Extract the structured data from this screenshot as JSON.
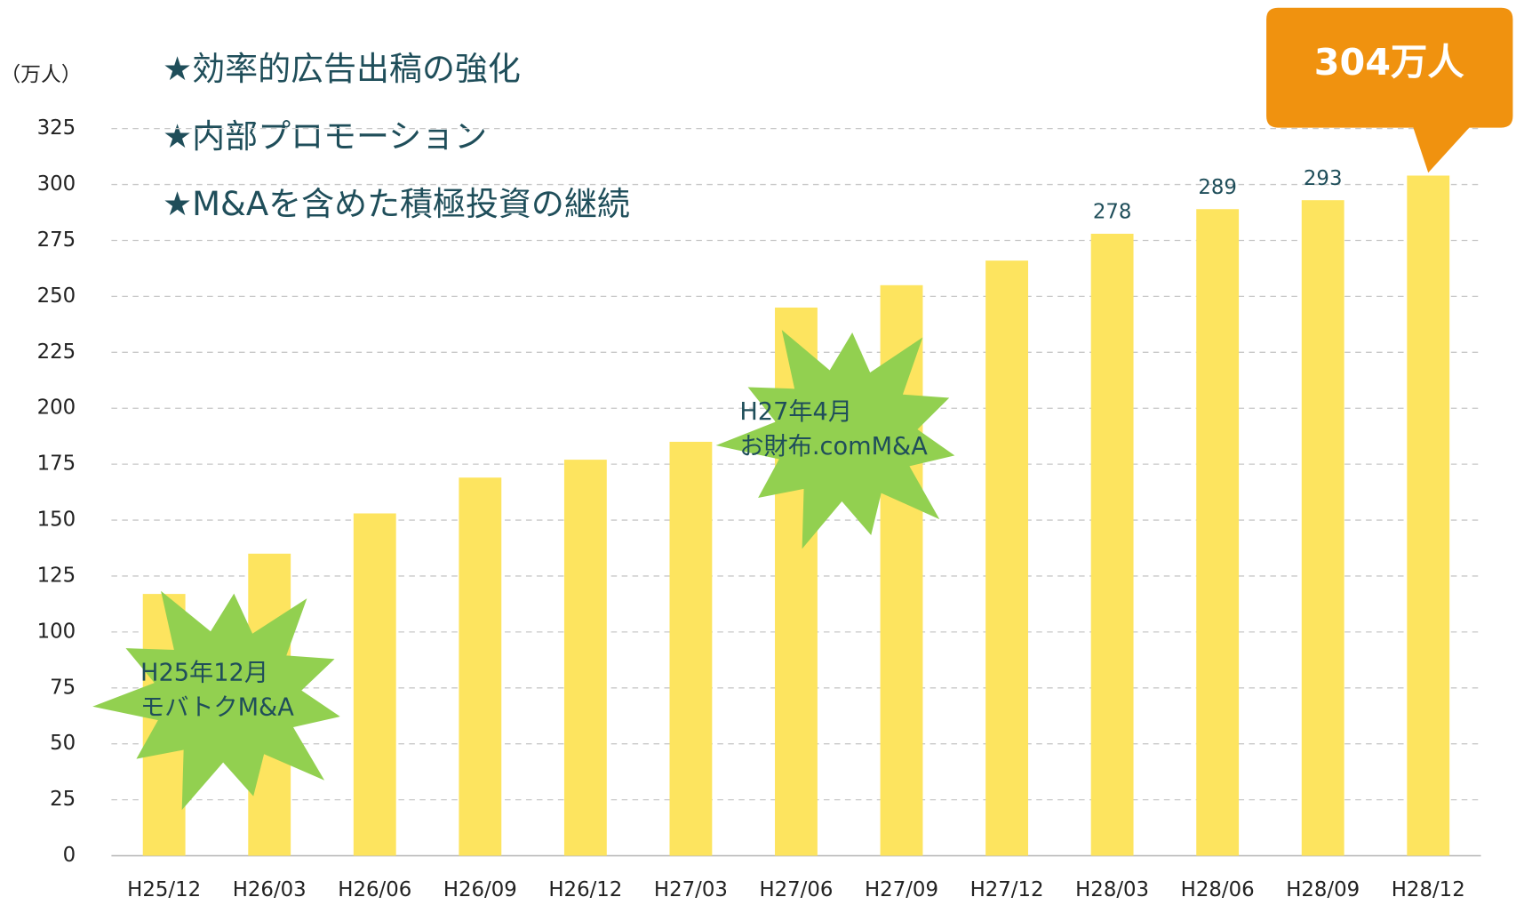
{
  "chart_data": {
    "type": "bar",
    "unit_label": "（万人）",
    "categories": [
      "H25/12",
      "H26/03",
      "H26/06",
      "H26/09",
      "H26/12",
      "H27/03",
      "H27/06",
      "H27/09",
      "H27/12",
      "H28/03",
      "H28/06",
      "H28/09",
      "H28/12"
    ],
    "values": [
      117,
      135,
      153,
      169,
      177,
      185,
      245,
      255,
      266,
      278,
      289,
      293,
      304
    ],
    "value_labels": [
      null,
      null,
      null,
      null,
      null,
      null,
      null,
      null,
      null,
      "278",
      "289",
      "293",
      "304万人"
    ],
    "color": "#fde45f",
    "ylim": [
      0,
      325
    ],
    "yticks": [
      0,
      25,
      50,
      75,
      100,
      125,
      150,
      175,
      200,
      225,
      250,
      275,
      300,
      325
    ],
    "grid": true,
    "annotations": [
      "★効率的広告出稿の強化",
      "★内部プロモーション",
      "★M&Aを含めた積極投資の継続"
    ],
    "events": [
      {
        "lines": [
          "H25年12月",
          "モバトクM&A"
        ]
      },
      {
        "lines": [
          "H27年4月",
          "お財布.comM&A"
        ]
      }
    ]
  }
}
